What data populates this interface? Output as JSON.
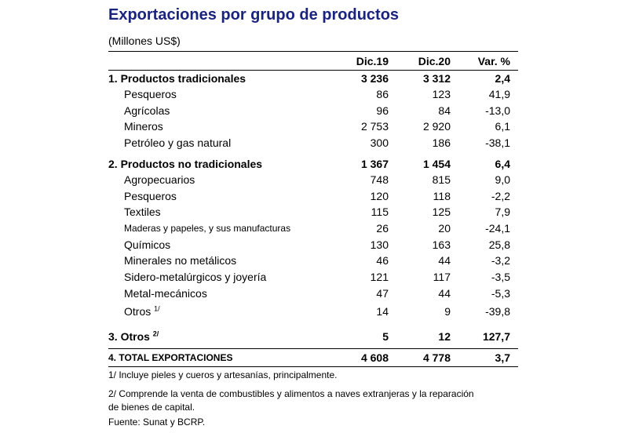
{
  "title": "Exportaciones por grupo de productos",
  "subtitle": "(Millones US$)",
  "headers": {
    "c1": "Dic.19",
    "c2": "Dic.20",
    "c3": "Var. %"
  },
  "rows": [
    {
      "label": "1.  Productos tradicionales",
      "c1": "3 236",
      "c2": "3 312",
      "c3": "2,4"
    },
    {
      "label": "Pesqueros",
      "c1": "86",
      "c2": "123",
      "c3": "41,9"
    },
    {
      "label": "Agrícolas",
      "c1": "96",
      "c2": "84",
      "c3": "-13,0"
    },
    {
      "label": "Mineros",
      "c1": "2 753",
      "c2": "2 920",
      "c3": "6,1"
    },
    {
      "label": "Petróleo  y  gas natural",
      "c1": "300",
      "c2": "186",
      "c3": "-38,1"
    },
    {
      "label": "2.  Productos no tradicionales",
      "c1": "1 367",
      "c2": "1 454",
      "c3": "6,4"
    },
    {
      "label": "Agropecuarios",
      "c1": "748",
      "c2": "815",
      "c3": "9,0"
    },
    {
      "label": "Pesqueros",
      "c1": "120",
      "c2": "118",
      "c3": "-2,2"
    },
    {
      "label": "Textiles",
      "c1": "115",
      "c2": "125",
      "c3": "7,9"
    },
    {
      "label": "Maderas y papeles, y sus manufacturas",
      "c1": "26",
      "c2": "20",
      "c3": "-24,1"
    },
    {
      "label": "Químicos",
      "c1": "130",
      "c2": "163",
      "c3": "25,8"
    },
    {
      "label": "Minerales no metálicos",
      "c1": "46",
      "c2": "44",
      "c3": "-3,2"
    },
    {
      "label": "Sidero-metalúrgicos y joyería",
      "c1": "121",
      "c2": "117",
      "c3": "-3,5"
    },
    {
      "label": "Metal-mecánicos",
      "c1": "47",
      "c2": "44",
      "c3": "-5,3"
    },
    {
      "label": "Otros",
      "sup": "1/",
      "c1": "14",
      "c2": "9",
      "c3": "-39,8"
    },
    {
      "label": "3.  Otros",
      "sup": "2/",
      "c1": "5",
      "c2": "12",
      "c3": "127,7"
    },
    {
      "label": "4.  TOTAL EXPORTACIONES",
      "c1": "4 608",
      "c2": "4 778",
      "c3": "3,7"
    }
  ],
  "notes": [
    "1/  Incluye pieles y cueros y artesanías, principalmente.",
    "2/  Comprende la venta de combustibles y alimentos a naves extranjeras y la reparación de bienes de capital.",
    "Fuente: Sunat y BCRP."
  ]
}
